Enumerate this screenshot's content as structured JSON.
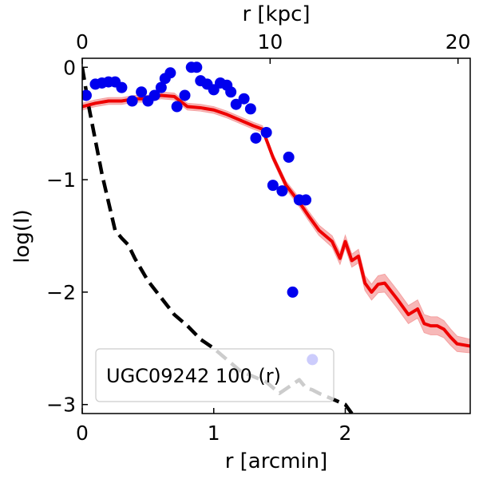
{
  "chart_data": {
    "type": "line",
    "title": "",
    "legend_label": "UGC09242 100 (r)",
    "legend_position": "lower-left",
    "xlabel": "r [arcmin]",
    "ylabel": "log(I)",
    "top_xlabel": "r [kpc]",
    "xlim": [
      0,
      2.95
    ],
    "ylim": [
      -3.08,
      0.08
    ],
    "x_ticks": [
      0,
      1,
      2
    ],
    "x_tick_labels": [
      "0",
      "1",
      "2"
    ],
    "y_ticks": [
      0,
      -1,
      -2,
      -3
    ],
    "y_tick_labels": [
      "0",
      "−1",
      "−2",
      "−3"
    ],
    "top_ticks_kpc": [
      0,
      10,
      20
    ],
    "top_tick_labels": [
      "0",
      "10",
      "20"
    ],
    "kpc_per_arcmin": 7.0,
    "colors": {
      "galaxy_profile": "#ee0000",
      "error_band": "#f4a0a0",
      "psf": "#000000",
      "points": "#0000ee",
      "legend_edge": "#cccccc"
    },
    "series": [
      {
        "name": "galaxy profile",
        "style": "solid",
        "x": [
          0.0,
          0.1,
          0.2,
          0.3,
          0.4,
          0.5,
          0.6,
          0.7,
          0.8,
          0.9,
          1.0,
          1.1,
          1.2,
          1.3,
          1.37,
          1.45,
          1.55,
          1.65,
          1.72,
          1.8,
          1.9,
          1.96,
          2.0,
          2.05,
          2.1,
          2.15,
          2.2,
          2.25,
          2.3,
          2.4,
          2.48,
          2.55,
          2.6,
          2.65,
          2.7,
          2.75,
          2.8,
          2.85,
          2.95
        ],
        "y": [
          -0.35,
          -0.32,
          -0.3,
          -0.3,
          -0.28,
          -0.28,
          -0.25,
          -0.26,
          -0.35,
          -0.36,
          -0.38,
          -0.42,
          -0.47,
          -0.52,
          -0.55,
          -0.8,
          -1.05,
          -1.2,
          -1.32,
          -1.45,
          -1.55,
          -1.7,
          -1.55,
          -1.72,
          -1.68,
          -1.92,
          -2.0,
          -1.93,
          -1.92,
          -2.07,
          -2.2,
          -2.15,
          -2.28,
          -2.3,
          -2.3,
          -2.33,
          -2.4,
          -2.46,
          -2.48
        ]
      },
      {
        "name": "error band half-width",
        "x": [
          0.0,
          0.5,
          1.0,
          1.4,
          1.7,
          1.9,
          2.1,
          2.3,
          2.5,
          2.7,
          2.95
        ],
        "halfwidth": [
          0.03,
          0.03,
          0.03,
          0.03,
          0.04,
          0.05,
          0.06,
          0.08,
          0.08,
          0.08,
          0.06
        ]
      },
      {
        "name": "PSF",
        "style": "dashed",
        "x": [
          0.0,
          0.05,
          0.1,
          0.15,
          0.2,
          0.25,
          0.3,
          0.35,
          0.4,
          0.5,
          0.6,
          0.7,
          0.8,
          0.9,
          1.0,
          1.1,
          1.2,
          1.3,
          1.4,
          1.5,
          1.6,
          1.65,
          1.7,
          1.75,
          1.8,
          1.9,
          2.0,
          2.05
        ],
        "y": [
          0.0,
          -0.35,
          -0.65,
          -0.95,
          -1.2,
          -1.45,
          -1.52,
          -1.58,
          -1.7,
          -1.9,
          -2.05,
          -2.2,
          -2.3,
          -2.42,
          -2.5,
          -2.6,
          -2.7,
          -2.75,
          -2.8,
          -2.9,
          -2.82,
          -2.78,
          -2.85,
          -2.87,
          -2.9,
          -2.95,
          -3.0,
          -3.08
        ]
      },
      {
        "name": "data points",
        "style": "markers",
        "x": [
          0.03,
          0.1,
          0.15,
          0.2,
          0.25,
          0.3,
          0.38,
          0.45,
          0.5,
          0.55,
          0.6,
          0.63,
          0.67,
          0.72,
          0.78,
          0.83,
          0.87,
          0.9,
          0.95,
          1.0,
          1.05,
          1.1,
          1.13,
          1.17,
          1.23,
          1.28,
          1.32,
          1.4,
          1.45,
          1.52,
          1.57,
          1.6,
          1.65,
          1.7,
          1.75
        ],
        "y": [
          -0.25,
          -0.15,
          -0.14,
          -0.13,
          -0.13,
          -0.18,
          -0.3,
          -0.22,
          -0.3,
          -0.25,
          -0.18,
          -0.1,
          -0.05,
          -0.35,
          -0.25,
          0.0,
          0.0,
          -0.12,
          -0.15,
          -0.2,
          -0.14,
          -0.16,
          -0.22,
          -0.33,
          -0.28,
          -0.37,
          -0.63,
          -0.58,
          -1.05,
          -1.1,
          -0.8,
          -2.0,
          -1.18,
          -1.18,
          -2.6
        ]
      }
    ]
  }
}
